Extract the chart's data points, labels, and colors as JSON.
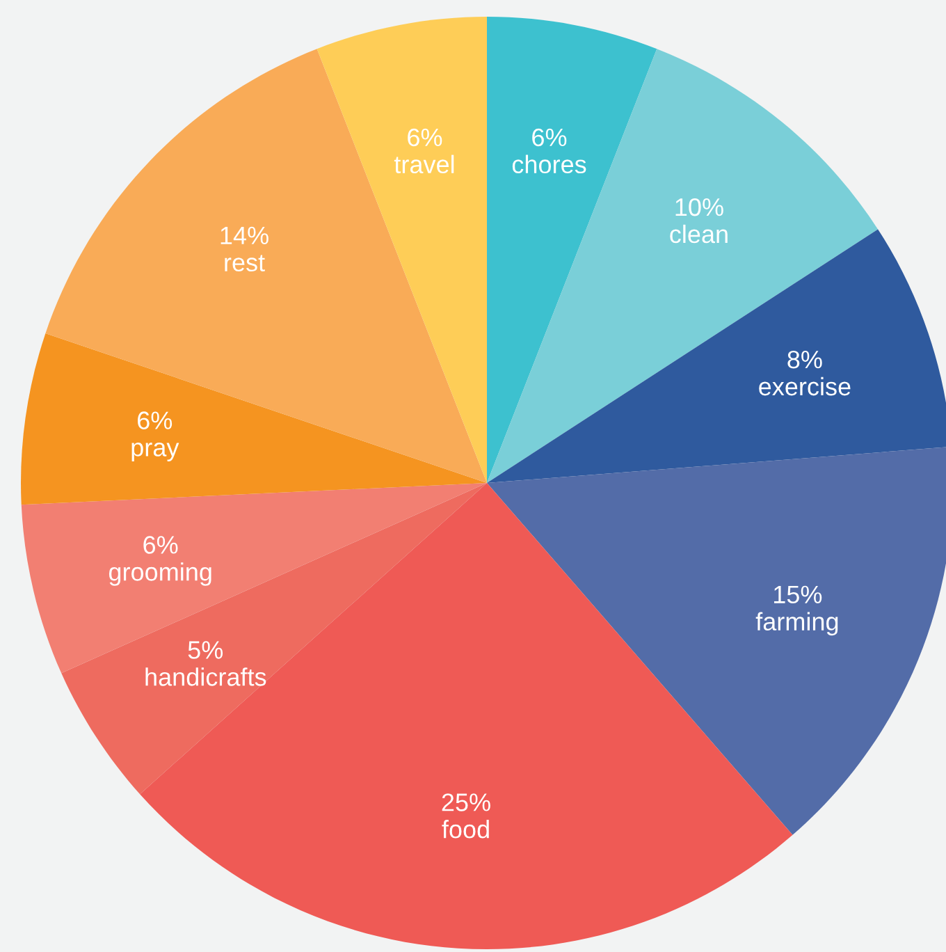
{
  "chart_data": {
    "type": "pie",
    "categories": [
      "chores",
      "clean",
      "exercise",
      "farming",
      "food",
      "handicrafts",
      "grooming",
      "pray",
      "rest",
      "travel"
    ],
    "values": [
      6,
      10,
      8,
      15,
      25,
      5,
      6,
      6,
      14,
      6
    ],
    "value_labels": [
      "6%",
      "10%",
      "8%",
      "15%",
      "25%",
      "5%",
      "6%",
      "6%",
      "14%",
      "6%"
    ],
    "colors": [
      "#3dc1cf",
      "#7acfd8",
      "#2f5a9e",
      "#536ca8",
      "#ef5a55",
      "#ee6b5f",
      "#f27f72",
      "#f59420",
      "#f9ab57",
      "#fecd57"
    ]
  }
}
